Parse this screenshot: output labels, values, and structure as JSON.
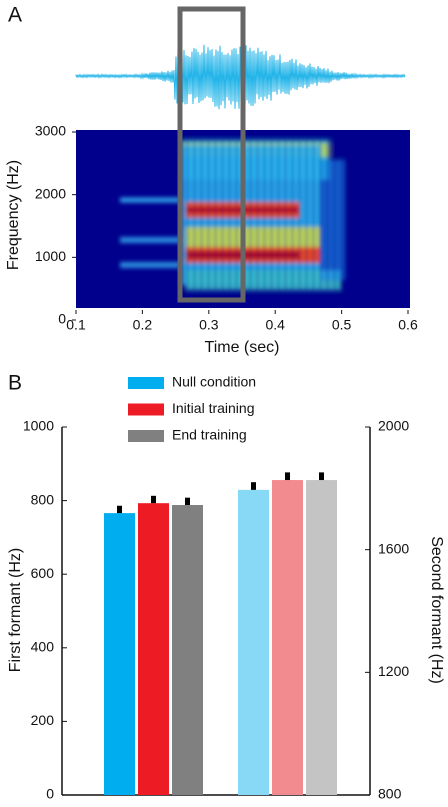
{
  "chart_data": [
    {
      "type": "spectrogram",
      "panel_label": "A",
      "xlabel": "Time (sec)",
      "ylabel": "Frequency (Hz)",
      "xlim": [
        0.1,
        0.6
      ],
      "xticks": [
        0.1,
        0.2,
        0.3,
        0.4,
        0.5,
        0.6
      ],
      "ylim": [
        0,
        3000
      ],
      "yticks": [
        0,
        1000,
        2000,
        3000
      ]
    },
    {
      "type": "bar",
      "panel_label": "B",
      "ylabel": "First formant (Hz)",
      "y2label": "Second formant (Hz)",
      "categories": [
        null,
        null
      ],
      "ylim": [
        0,
        1000
      ],
      "yticks": [
        0,
        200,
        400,
        600,
        800,
        1000
      ],
      "y2lim": [
        800,
        2000
      ],
      "y2ticks": [
        800,
        1200,
        1600,
        2000
      ],
      "axes": [
        "y",
        "y2"
      ],
      "series": [
        {
          "name": "Null condition",
          "color": "#00aeef",
          "colors": [
            "#00aeef",
            "#87d9f6"
          ],
          "values": [
            766,
            1795
          ],
          "errors": [
            20,
            25
          ]
        },
        {
          "name": "Initial training",
          "color": "#ed1c24",
          "colors": [
            "#ed1c24",
            "#f28b8f"
          ],
          "values": [
            793,
            1827
          ],
          "errors": [
            20,
            25
          ]
        },
        {
          "name": "End training",
          "color": "#808080",
          "colors": [
            "#808080",
            "#c4c4c4"
          ],
          "values": [
            788,
            1827
          ],
          "errors": [
            20,
            25
          ]
        }
      ]
    }
  ]
}
